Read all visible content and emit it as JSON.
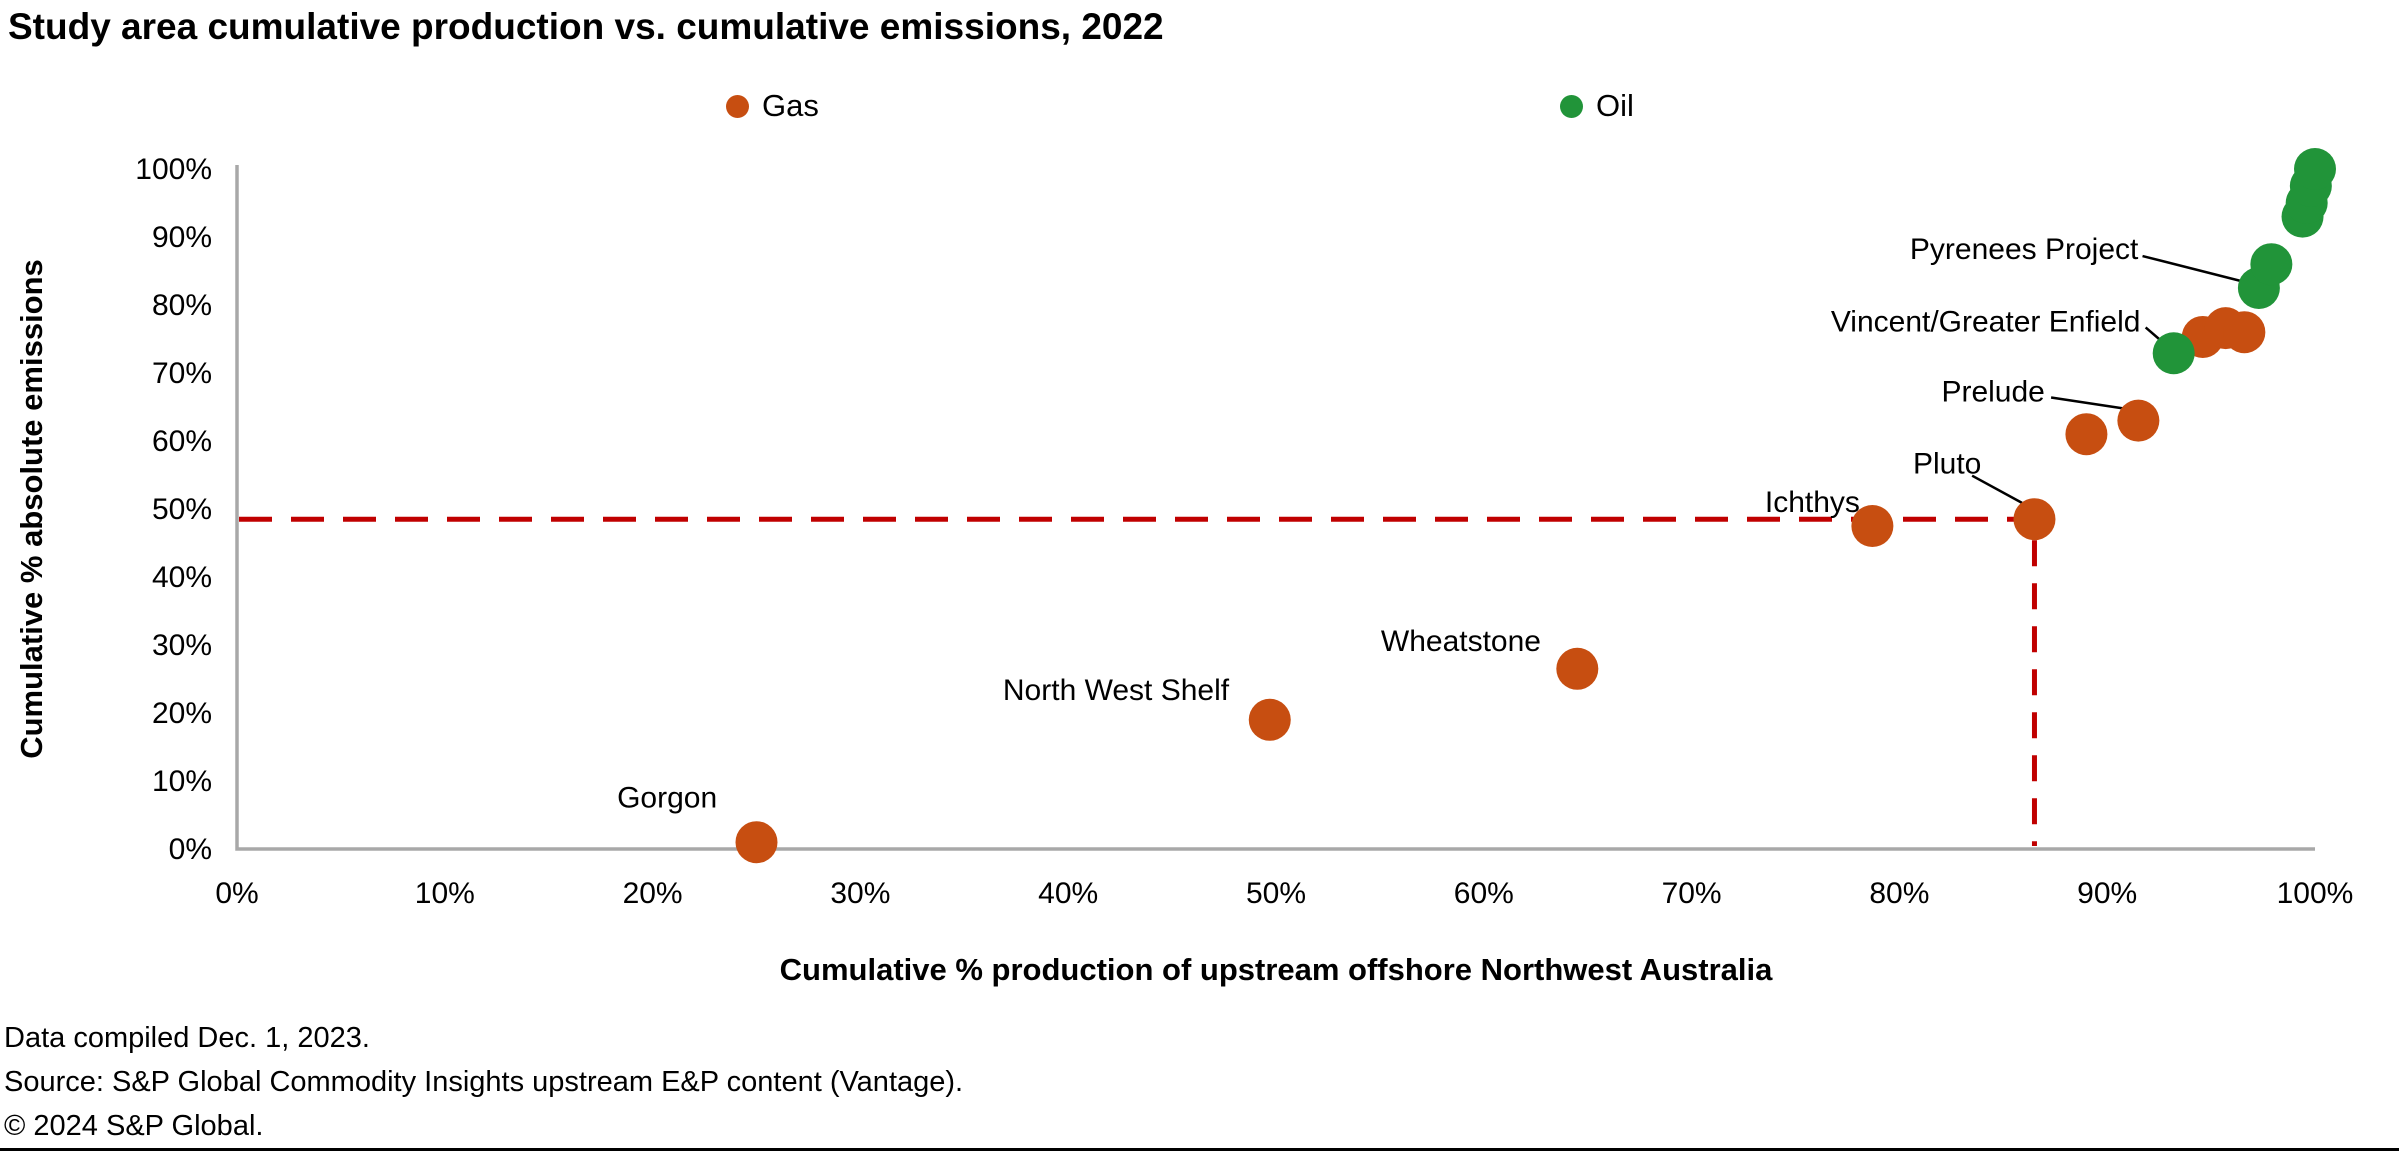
{
  "title": "Study area cumulative production vs. cumulative emissions, 2022",
  "legend": {
    "items": [
      {
        "label": "Gas",
        "color": "#C74E11"
      },
      {
        "label": "Oil",
        "color": "#219439"
      }
    ]
  },
  "chart_data": {
    "type": "scatter",
    "title": "Study area cumulative production vs. cumulative emissions, 2022",
    "xlabel": "Cumulative % production of upstream offshore Northwest Australia",
    "ylabel": "Cumulative % absolute emissions",
    "xlim": [
      0,
      100
    ],
    "ylim": [
      0,
      100
    ],
    "grid": false,
    "legend_position": "top",
    "x_tick_labels": [
      "0%",
      "10%",
      "20%",
      "30%",
      "40%",
      "50%",
      "60%",
      "70%",
      "80%",
      "90%",
      "100%"
    ],
    "y_tick_labels": [
      "0%",
      "10%",
      "20%",
      "30%",
      "40%",
      "50%",
      "60%",
      "70%",
      "80%",
      "90%",
      "100%"
    ],
    "axis_color": "#A8A8A8",
    "series": [
      {
        "name": "Gas",
        "color": "#C74E11",
        "points": [
          {
            "x": 25,
            "y": 1,
            "label": "Gorgon",
            "label_x": 20.7,
            "label_y": 7.6,
            "align": "middle"
          },
          {
            "x": 49.7,
            "y": 19,
            "label": "North West Shelf",
            "label_x": 42.3,
            "label_y": 23.4,
            "align": "middle"
          },
          {
            "x": 64.5,
            "y": 26.5,
            "label": "Wheatstone",
            "label_x": 58.9,
            "label_y": 30.6,
            "align": "middle"
          },
          {
            "x": 78.7,
            "y": 47.5,
            "label": "Ichthys",
            "label_x": 78.1,
            "label_y": 51.0,
            "align": "end"
          },
          {
            "x": 86.5,
            "y": 48.5,
            "label": "Pluto",
            "label_x": 82.3,
            "label_y": 56.7,
            "align": "middle",
            "leader": [
              83.5,
              54.9,
              85.9,
              50.9
            ]
          },
          {
            "x": 89,
            "y": 61
          },
          {
            "x": 91.5,
            "y": 63,
            "label": "Prelude",
            "label_x": 87.0,
            "label_y": 67.3,
            "align": "end",
            "leader": [
              87.3,
              66.4,
              91.2,
              64.6
            ]
          },
          {
            "x": 94.6,
            "y": 75.3
          },
          {
            "x": 95.7,
            "y": 76.6
          },
          {
            "x": 96.6,
            "y": 76
          }
        ]
      },
      {
        "name": "Oil",
        "color": "#219439",
        "points": [
          {
            "x": 93.2,
            "y": 72.9,
            "label": "Vincent/Greater Enfield",
            "label_x": 91.6,
            "label_y": 77.6,
            "align": "end",
            "leader": [
              91.85,
              76.7,
              92.8,
              74.2
            ]
          },
          {
            "x": 97.3,
            "y": 82.5,
            "label": "Pyrenees Project",
            "label_x": 91.5,
            "label_y": 88.2,
            "align": "end",
            "leader": [
              91.7,
              87.2,
              96.6,
              83.4
            ]
          },
          {
            "x": 97.9,
            "y": 86
          },
          {
            "x": 99.4,
            "y": 93
          },
          {
            "x": 99.6,
            "y": 95
          },
          {
            "x": 99.8,
            "y": 97.5
          },
          {
            "x": 100,
            "y": 100
          }
        ]
      }
    ],
    "reference_lines": {
      "style": "dashed",
      "color": "#C00000",
      "horizontal_y": 48.5,
      "horizontal_x_end": 86.5,
      "vertical_x": 86.5
    }
  },
  "footer": {
    "compiled": "Data compiled Dec. 1, 2023.",
    "source": "Source: S&P Global Commodity Insights upstream E&P content (Vantage).",
    "copyright": "© 2024 S&P Global."
  }
}
